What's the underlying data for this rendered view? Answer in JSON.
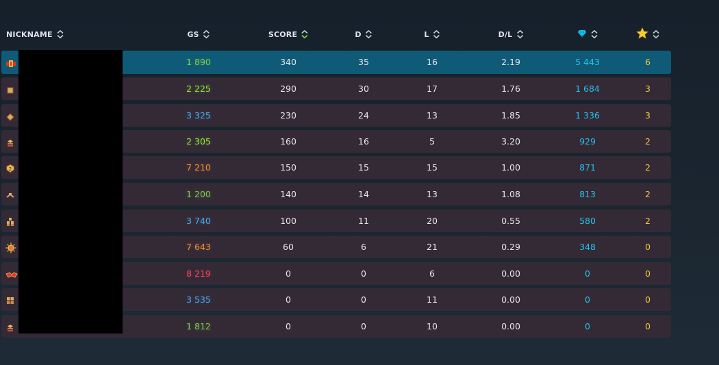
{
  "headers": {
    "nickname": "NICKNAME",
    "gs": "GS",
    "score": "SCORE",
    "d": "D",
    "l": "L",
    "dl": "D/L"
  },
  "icons": {
    "diamond": "diamond-icon",
    "star": "star-icon",
    "sort": "sort-chevrons-icon"
  },
  "colors": {
    "green": "#7fc94a",
    "lime": "#8ee43a",
    "blue": "#4aa6e6",
    "orange": "#f28a37",
    "red": "#f0455d",
    "cyan": "#25c0ec",
    "gold": "#f3c73a",
    "white": "#e6e6ea"
  },
  "rows": [
    {
      "gs": "1 890",
      "gs_color": "green",
      "score": "340",
      "d": "35",
      "l": "16",
      "dl": "2.19",
      "diamonds": "5 443",
      "stars": "6",
      "rank_icon": "rank-flag-red-icon",
      "highlighted": true
    },
    {
      "gs": "2 225",
      "gs_color": "lime",
      "score": "290",
      "d": "30",
      "l": "17",
      "dl": "1.76",
      "diamonds": "1 684",
      "stars": "3",
      "rank_icon": "rank-box-icon"
    },
    {
      "gs": "3 325",
      "gs_color": "blue",
      "score": "230",
      "d": "24",
      "l": "13",
      "dl": "1.85",
      "diamonds": "1 336",
      "stars": "3",
      "rank_icon": "rank-diamond-icon"
    },
    {
      "gs": "2 305",
      "gs_color": "lime",
      "score": "160",
      "d": "16",
      "l": "5",
      "dl": "3.20",
      "diamonds": "929",
      "stars": "2",
      "rank_icon": "rank-stack-icon"
    },
    {
      "gs": "7 210",
      "gs_color": "orange",
      "score": "150",
      "d": "15",
      "l": "15",
      "dl": "1.00",
      "diamonds": "871",
      "stars": "2",
      "rank_icon": "rank-shield-icon"
    },
    {
      "gs": "1 200",
      "gs_color": "green",
      "score": "140",
      "d": "14",
      "l": "13",
      "dl": "1.08",
      "diamonds": "813",
      "stars": "2",
      "rank_icon": "rank-chevron-icon"
    },
    {
      "gs": "3 740",
      "gs_color": "blue",
      "score": "100",
      "d": "11",
      "l": "20",
      "dl": "0.55",
      "diamonds": "580",
      "stars": "2",
      "rank_icon": "rank-blocks-icon"
    },
    {
      "gs": "7 643",
      "gs_color": "orange",
      "score": "60",
      "d": "6",
      "l": "21",
      "dl": "0.29",
      "diamonds": "348",
      "stars": "0",
      "rank_icon": "rank-sun-icon"
    },
    {
      "gs": "8 219",
      "gs_color": "red",
      "score": "0",
      "d": "0",
      "l": "6",
      "dl": "0.00",
      "diamonds": "0",
      "stars": "0",
      "rank_icon": "rank-wing-icon"
    },
    {
      "gs": "3 535",
      "gs_color": "blue",
      "score": "0",
      "d": "0",
      "l": "11",
      "dl": "0.00",
      "diamonds": "0",
      "stars": "0",
      "rank_icon": "rank-grid-icon"
    },
    {
      "gs": "1 812",
      "gs_color": "green",
      "score": "0",
      "d": "0",
      "l": "10",
      "dl": "0.00",
      "diamonds": "0",
      "stars": "0",
      "rank_icon": "rank-stack-icon"
    }
  ]
}
